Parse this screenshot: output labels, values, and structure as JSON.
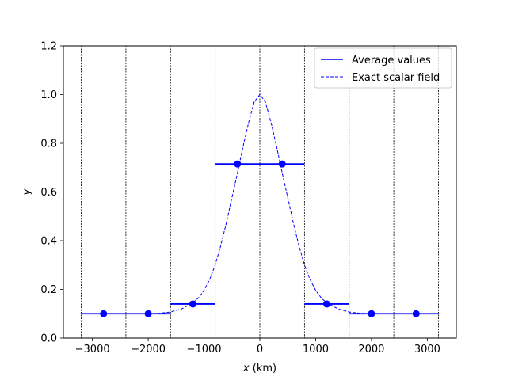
{
  "chart_data": {
    "type": "line",
    "title": "",
    "xlabel_var": "x",
    "xlabel_unit": " (km)",
    "ylabel": "y",
    "xlim": [
      -3520,
      3520
    ],
    "ylim": [
      0.0,
      1.2
    ],
    "xticks": [
      -3000,
      -2000,
      -1000,
      0,
      1000,
      2000,
      3000
    ],
    "yticks": [
      0.0,
      0.2,
      0.4,
      0.6,
      0.8,
      1.0,
      1.2
    ],
    "xtick_labels": [
      "−3000",
      "−2000",
      "−1000",
      "0",
      "1000",
      "2000",
      "3000"
    ],
    "ytick_labels": [
      "0.0",
      "0.2",
      "0.4",
      "0.6",
      "0.8",
      "1.0",
      "1.2"
    ],
    "cell_edges": [
      -3200,
      -2400,
      -1600,
      -800,
      0,
      800,
      1600,
      2400,
      3200
    ],
    "grid": false,
    "legend_placement": "upper-right",
    "series": [
      {
        "name": "Average values",
        "style": "solid with markers",
        "color": "#0000ff",
        "segments": [
          {
            "x_start": -3200,
            "x_end": -1600,
            "y": 0.1
          },
          {
            "x_start": -1600,
            "x_end": -800,
            "y": 0.14
          },
          {
            "x_start": -800,
            "x_end": 800,
            "y": 0.715
          },
          {
            "x_start": 800,
            "x_end": 1600,
            "y": 0.14
          },
          {
            "x_start": 1600,
            "x_end": 3200,
            "y": 0.1
          }
        ],
        "points": [
          {
            "x": -2800,
            "y": 0.1
          },
          {
            "x": -2000,
            "y": 0.1
          },
          {
            "x": -1200,
            "y": 0.14
          },
          {
            "x": -400,
            "y": 0.715
          },
          {
            "x": 400,
            "y": 0.715
          },
          {
            "x": 1200,
            "y": 0.14
          },
          {
            "x": 2000,
            "y": 0.1
          },
          {
            "x": 2800,
            "y": 0.1
          }
        ]
      },
      {
        "name": "Exact scalar field",
        "style": "dashed",
        "color": "#0000ff",
        "x": [
          -3200,
          -2400,
          -2000,
          -1800,
          -1600,
          -1400,
          -1200,
          -1100,
          -1000,
          -900,
          -800,
          -700,
          -600,
          -500,
          -400,
          -300,
          -200,
          -100,
          0,
          100,
          200,
          300,
          400,
          500,
          600,
          700,
          800,
          900,
          1000,
          1100,
          1200,
          1400,
          1600,
          1800,
          2000,
          2400,
          3200
        ],
        "y": [
          0.1,
          0.1,
          0.1,
          0.102,
          0.107,
          0.12,
          0.145,
          0.165,
          0.196,
          0.24,
          0.3,
          0.38,
          0.473,
          0.577,
          0.679,
          0.787,
          0.886,
          0.97,
          1.0,
          0.97,
          0.886,
          0.787,
          0.679,
          0.577,
          0.473,
          0.38,
          0.3,
          0.24,
          0.196,
          0.165,
          0.145,
          0.12,
          0.107,
          0.102,
          0.1,
          0.1,
          0.1
        ]
      }
    ]
  }
}
